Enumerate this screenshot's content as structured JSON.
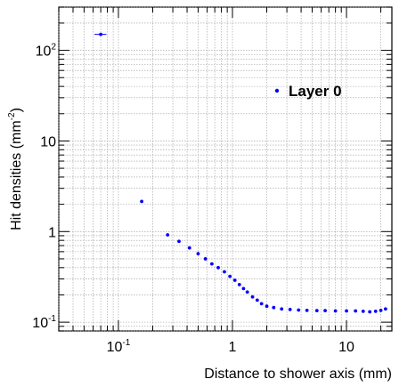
{
  "chart_data": {
    "type": "scatter",
    "xlabel": "Distance to shower axis (mm)",
    "ylabel_parts": [
      "Hit densities (mm",
      "-2",
      ")"
    ],
    "x_scale": "log",
    "y_scale": "log",
    "xlim": [
      0.03,
      25
    ],
    "ylim": [
      0.08,
      300
    ],
    "grid": true,
    "legend_position": "top-right",
    "x_ticks": [
      {
        "value": 0.1,
        "base": "10",
        "exp": "-1"
      },
      {
        "value": 1,
        "base": "1",
        "exp": ""
      },
      {
        "value": 10,
        "base": "10",
        "exp": ""
      }
    ],
    "y_ticks": [
      {
        "value": 0.1,
        "base": "10",
        "exp": "-1"
      },
      {
        "value": 1,
        "base": "1",
        "exp": ""
      },
      {
        "value": 10,
        "base": "10",
        "exp": ""
      },
      {
        "value": 100,
        "base": "10",
        "exp": "2"
      }
    ],
    "series": [
      {
        "name": "Layer 0",
        "color": "#0000ff",
        "points": [
          [
            0.07,
            150
          ],
          [
            0.16,
            2.15
          ],
          [
            0.27,
            0.92
          ],
          [
            0.34,
            0.78
          ],
          [
            0.42,
            0.66
          ],
          [
            0.5,
            0.57
          ],
          [
            0.58,
            0.5
          ],
          [
            0.66,
            0.44
          ],
          [
            0.75,
            0.4
          ],
          [
            0.85,
            0.36
          ],
          [
            0.95,
            0.32
          ],
          [
            1.05,
            0.29
          ],
          [
            1.15,
            0.26
          ],
          [
            1.25,
            0.235
          ],
          [
            1.35,
            0.215
          ],
          [
            1.5,
            0.19
          ],
          [
            1.65,
            0.175
          ],
          [
            1.8,
            0.16
          ],
          [
            2.0,
            0.15
          ],
          [
            2.3,
            0.145
          ],
          [
            2.7,
            0.14
          ],
          [
            3.2,
            0.138
          ],
          [
            3.8,
            0.136
          ],
          [
            4.5,
            0.135
          ],
          [
            5.5,
            0.134
          ],
          [
            6.5,
            0.134
          ],
          [
            8,
            0.133
          ],
          [
            10,
            0.133
          ],
          [
            12,
            0.133
          ],
          [
            14,
            0.132
          ],
          [
            16,
            0.13
          ],
          [
            18,
            0.132
          ],
          [
            20,
            0.135
          ],
          [
            22,
            0.14
          ]
        ]
      }
    ]
  }
}
